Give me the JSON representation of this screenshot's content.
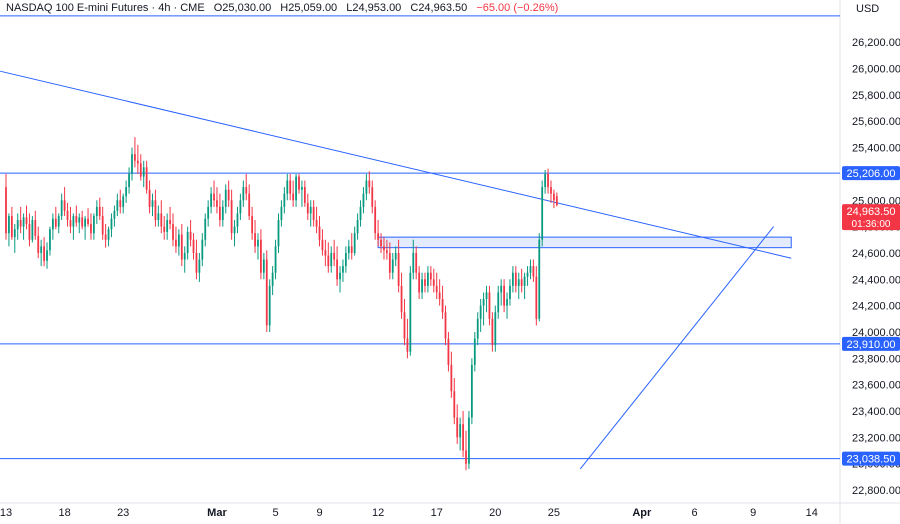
{
  "header": {
    "symbol": "NASDAQ 100 E-mini Futures · 4h · CME",
    "open": "O25,030.00",
    "high": "H25,059.00",
    "low": "L24,953.00",
    "close": "C24,963.50",
    "change": "−65.00 (−0.26%)",
    "change_color": "#f23645"
  },
  "currency": "USD",
  "colors": {
    "up": "#089981",
    "down": "#f23645",
    "line": "#2962ff",
    "zone_fill": "#e3ebfd",
    "zone_border": "#2962ff",
    "price_badge": "#f23645",
    "level_badge": "#2962ff"
  },
  "chart_data": {
    "type": "candlestick",
    "interval": "4h",
    "ylim": [
      22700,
      26350
    ],
    "y_ticks": [
      "26,200.00",
      "26,000.00",
      "25,800.00",
      "25,600.00",
      "25,400.00",
      "25,200.00",
      "25,000.00",
      "24,800.00",
      "24,600.00",
      "24,400.00",
      "24,200.00",
      "24,000.00",
      "23,800.00",
      "23,600.00",
      "23,400.00",
      "23,200.00",
      "23,000.00",
      "22,800.00"
    ],
    "x_ticks": [
      {
        "label": "13",
        "i": 0
      },
      {
        "label": "18",
        "i": 20
      },
      {
        "label": "23",
        "i": 40
      },
      {
        "label": "Mar",
        "i": 72
      },
      {
        "label": "5",
        "i": 92
      },
      {
        "label": "9",
        "i": 107
      },
      {
        "label": "12",
        "i": 127
      },
      {
        "label": "17",
        "i": 147
      },
      {
        "label": "20",
        "i": 167
      },
      {
        "label": "25",
        "i": 187
      },
      {
        "label": "Apr",
        "i": 217
      },
      {
        "label": "6",
        "i": 235
      },
      {
        "label": "9",
        "i": 255
      },
      {
        "label": "14",
        "i": 275
      }
    ],
    "candles": [
      [
        25100,
        25200,
        24700,
        24750
      ],
      [
        24750,
        24900,
        24650,
        24880
      ],
      [
        24880,
        24950,
        24700,
        24720
      ],
      [
        24720,
        24820,
        24600,
        24780
      ],
      [
        24780,
        24900,
        24700,
        24850
      ],
      [
        24850,
        24950,
        24750,
        24800
      ],
      [
        24800,
        24900,
        24700,
        24870
      ],
      [
        24870,
        24960,
        24780,
        24820
      ],
      [
        24820,
        24900,
        24650,
        24700
      ],
      [
        24700,
        24880,
        24680,
        24850
      ],
      [
        24850,
        24920,
        24700,
        24730
      ],
      [
        24730,
        24800,
        24560,
        24600
      ],
      [
        24600,
        24700,
        24500,
        24650
      ],
      [
        24650,
        24720,
        24500,
        24540
      ],
      [
        24540,
        24680,
        24480,
        24620
      ],
      [
        24620,
        24800,
        24580,
        24780
      ],
      [
        24780,
        24900,
        24700,
        24860
      ],
      [
        24860,
        24950,
        24780,
        24800
      ],
      [
        24800,
        24900,
        24750,
        24880
      ],
      [
        24880,
        25050,
        24850,
        25000
      ],
      [
        25000,
        25100,
        24880,
        24920
      ],
      [
        24920,
        24980,
        24800,
        24850
      ],
      [
        24850,
        24950,
        24750,
        24800
      ],
      [
        24800,
        24900,
        24700,
        24880
      ],
      [
        24880,
        24960,
        24800,
        24830
      ],
      [
        24830,
        24900,
        24750,
        24870
      ],
      [
        24870,
        24920,
        24780,
        24800
      ],
      [
        24800,
        24880,
        24700,
        24860
      ],
      [
        24860,
        24940,
        24800,
        24820
      ],
      [
        24820,
        24900,
        24700,
        24750
      ],
      [
        24750,
        24900,
        24700,
        24880
      ],
      [
        24880,
        25000,
        24820,
        24950
      ],
      [
        24950,
        25020,
        24850,
        24880
      ],
      [
        24880,
        24950,
        24700,
        24740
      ],
      [
        24740,
        24820,
        24640,
        24700
      ],
      [
        24700,
        24800,
        24650,
        24780
      ],
      [
        24780,
        24900,
        24720,
        24860
      ],
      [
        24860,
        24960,
        24800,
        24920
      ],
      [
        24920,
        25050,
        24880,
        25000
      ],
      [
        25000,
        25080,
        24900,
        24950
      ],
      [
        24950,
        25050,
        24900,
        25030
      ],
      [
        25030,
        25150,
        24980,
        25100
      ],
      [
        25100,
        25250,
        25050,
        25200
      ],
      [
        25200,
        25400,
        25150,
        25350
      ],
      [
        25350,
        25480,
        25250,
        25300
      ],
      [
        25300,
        25420,
        25200,
        25280
      ],
      [
        25280,
        25350,
        25150,
        25180
      ],
      [
        25180,
        25300,
        25100,
        25250
      ],
      [
        25250,
        25300,
        25050,
        25080
      ],
      [
        25080,
        25150,
        24900,
        24950
      ],
      [
        24950,
        25050,
        24880,
        25000
      ],
      [
        25000,
        25080,
        24800,
        24850
      ],
      [
        24850,
        24960,
        24800,
        24900
      ],
      [
        24900,
        25000,
        24750,
        24800
      ],
      [
        24800,
        24880,
        24700,
        24760
      ],
      [
        24760,
        24900,
        24700,
        24850
      ],
      [
        24850,
        24950,
        24780,
        24820
      ],
      [
        24820,
        24900,
        24650,
        24700
      ],
      [
        24700,
        24800,
        24600,
        24650
      ],
      [
        24650,
        24780,
        24580,
        24740
      ],
      [
        24740,
        24820,
        24500,
        24550
      ],
      [
        24550,
        24650,
        24450,
        24600
      ],
      [
        24600,
        24800,
        24550,
        24760
      ],
      [
        24760,
        24850,
        24650,
        24700
      ],
      [
        24700,
        24750,
        24550,
        24600
      ],
      [
        24600,
        24700,
        24400,
        24450
      ],
      [
        24450,
        24600,
        24380,
        24550
      ],
      [
        24550,
        24750,
        24500,
        24700
      ],
      [
        24700,
        24900,
        24650,
        24860
      ],
      [
        24860,
        25000,
        24800,
        24950
      ],
      [
        24950,
        25100,
        24900,
        25050
      ],
      [
        25050,
        25150,
        24950,
        25000
      ],
      [
        25000,
        25100,
        24900,
        24950
      ],
      [
        24950,
        25050,
        24800,
        24850
      ],
      [
        24850,
        25000,
        24800,
        24950
      ],
      [
        24950,
        25120,
        24900,
        25080
      ],
      [
        25080,
        25150,
        24950,
        25000
      ],
      [
        25000,
        25080,
        24700,
        24750
      ],
      [
        24750,
        24850,
        24650,
        24800
      ],
      [
        24800,
        24950,
        24750,
        24900
      ],
      [
        24900,
        25050,
        24850,
        25000
      ],
      [
        25000,
        25150,
        24950,
        25100
      ],
      [
        25100,
        25200,
        25000,
        25050
      ],
      [
        25050,
        25120,
        24850,
        24880
      ],
      [
        24880,
        24950,
        24700,
        24750
      ],
      [
        24750,
        24850,
        24600,
        24650
      ],
      [
        24650,
        24750,
        24550,
        24700
      ],
      [
        24700,
        24780,
        24400,
        24450
      ],
      [
        24450,
        24600,
        24400,
        24550
      ],
      [
        24550,
        24620,
        24000,
        24050
      ],
      [
        24050,
        24400,
        24000,
        24350
      ],
      [
        24350,
        24500,
        24280,
        24450
      ],
      [
        24450,
        24700,
        24400,
        24650
      ],
      [
        24650,
        24900,
        24600,
        24850
      ],
      [
        24850,
        25000,
        24800,
        24950
      ],
      [
        24950,
        25100,
        24900,
        25050
      ],
      [
        25050,
        25200,
        25000,
        25150
      ],
      [
        25150,
        25200,
        25000,
        25050
      ],
      [
        25050,
        25150,
        24950,
        25000
      ],
      [
        25000,
        25200,
        24950,
        25180
      ],
      [
        25180,
        25200,
        25050,
        25080
      ],
      [
        25080,
        25150,
        24950,
        25100
      ],
      [
        25100,
        25150,
        24950,
        24980
      ],
      [
        24980,
        25050,
        24850,
        24900
      ],
      [
        24900,
        25000,
        24800,
        24950
      ],
      [
        24950,
        25000,
        24800,
        24850
      ],
      [
        24850,
        24950,
        24750,
        24800
      ],
      [
        24800,
        24880,
        24650,
        24700
      ],
      [
        24700,
        24780,
        24580,
        24620
      ],
      [
        24620,
        24700,
        24500,
        24580
      ],
      [
        24580,
        24680,
        24450,
        24500
      ],
      [
        24500,
        24650,
        24450,
        24600
      ],
      [
        24600,
        24700,
        24500,
        24550
      ],
      [
        24550,
        24650,
        24350,
        24400
      ],
      [
        24400,
        24500,
        24300,
        24450
      ],
      [
        24450,
        24550,
        24380,
        24500
      ],
      [
        24500,
        24650,
        24450,
        24600
      ],
      [
        24600,
        24700,
        24550,
        24650
      ],
      [
        24650,
        24750,
        24550,
        24600
      ],
      [
        24600,
        24800,
        24580,
        24750
      ],
      [
        24750,
        24900,
        24700,
        24850
      ],
      [
        24850,
        25000,
        24800,
        24950
      ],
      [
        24950,
        25100,
        24900,
        25050
      ],
      [
        25050,
        25200,
        25000,
        25150
      ],
      [
        25150,
        25220,
        25050,
        25100
      ],
      [
        25100,
        25150,
        24900,
        24950
      ],
      [
        24950,
        25000,
        24700,
        24750
      ],
      [
        24750,
        24850,
        24650,
        24700
      ],
      [
        24700,
        24750,
        24600,
        24650
      ],
      [
        24650,
        24720,
        24550,
        24620
      ],
      [
        24620,
        24700,
        24550,
        24600
      ],
      [
        24600,
        24680,
        24400,
        24450
      ],
      [
        24450,
        24600,
        24400,
        24550
      ],
      [
        24550,
        24650,
        24500,
        24600
      ],
      [
        24600,
        24700,
        24300,
        24350
      ],
      [
        24350,
        24450,
        24100,
        24150
      ],
      [
        24150,
        24250,
        23900,
        23950
      ],
      [
        23950,
        24100,
        23800,
        23850
      ],
      [
        23850,
        24500,
        23820,
        24450
      ],
      [
        24450,
        24700,
        24400,
        24600
      ],
      [
        24600,
        24650,
        24400,
        24450
      ],
      [
        24450,
        24500,
        24250,
        24300
      ],
      [
        24300,
        24450,
        24250,
        24400
      ],
      [
        24400,
        24450,
        24300,
        24350
      ],
      [
        24350,
        24500,
        24300,
        24450
      ],
      [
        24450,
        24500,
        24350,
        24400
      ],
      [
        24400,
        24480,
        24300,
        24350
      ],
      [
        24350,
        24450,
        24250,
        24300
      ],
      [
        24300,
        24400,
        24200,
        24250
      ],
      [
        24250,
        24350,
        24100,
        24150
      ],
      [
        24150,
        24200,
        23900,
        23950
      ],
      [
        23950,
        24000,
        23700,
        23750
      ],
      [
        23750,
        23850,
        23500,
        23550
      ],
      [
        23550,
        23650,
        23300,
        23350
      ],
      [
        23350,
        23450,
        23150,
        23200
      ],
      [
        23200,
        23350,
        23100,
        23300
      ],
      [
        23300,
        23400,
        23050,
        23100
      ],
      [
        23100,
        23250,
        22950,
        23000
      ],
      [
        23000,
        23400,
        22960,
        23350
      ],
      [
        23350,
        23800,
        23300,
        23750
      ],
      [
        23750,
        24000,
        23700,
        23950
      ],
      [
        23950,
        24150,
        23900,
        24100
      ],
      [
        24100,
        24250,
        24000,
        24200
      ],
      [
        24200,
        24300,
        24050,
        24250
      ],
      [
        24250,
        24350,
        24150,
        24300
      ],
      [
        24300,
        24350,
        24050,
        24100
      ],
      [
        24100,
        24150,
        23850,
        23900
      ],
      [
        23900,
        24200,
        23850,
        24150
      ],
      [
        24150,
        24350,
        24100,
        24300
      ],
      [
        24300,
        24400,
        24200,
        24350
      ],
      [
        24350,
        24400,
        24150,
        24200
      ],
      [
        24200,
        24300,
        24100,
        24250
      ],
      [
        24250,
        24400,
        24200,
        24350
      ],
      [
        24350,
        24500,
        24300,
        24450
      ],
      [
        24450,
        24500,
        24300,
        24350
      ],
      [
        24350,
        24450,
        24250,
        24400
      ],
      [
        24400,
        24480,
        24300,
        24350
      ],
      [
        24350,
        24450,
        24250,
        24420
      ],
      [
        24420,
        24500,
        24350,
        24450
      ],
      [
        24450,
        24550,
        24400,
        24500
      ],
      [
        24500,
        24550,
        24380,
        24420
      ],
      [
        24420,
        24500,
        24050,
        24100
      ],
      [
        24100,
        24750,
        24080,
        24700
      ],
      [
        24700,
        25150,
        24650,
        25100
      ],
      [
        25100,
        25230,
        25050,
        25200
      ],
      [
        25200,
        25240,
        25050,
        25100
      ],
      [
        25100,
        25150,
        24980,
        25050
      ],
      [
        25050,
        25080,
        24940,
        25000
      ],
      [
        25030,
        25059,
        24953,
        24963.5
      ]
    ],
    "levels": [
      {
        "value": 25206.0,
        "label": "25,206.00"
      },
      {
        "value": 23910.0,
        "label": "23,910.00"
      },
      {
        "value": 23038.5,
        "label": "23,038.50"
      }
    ],
    "top_level": 26400,
    "last_price": {
      "label": "24,963.50",
      "timer": "01:36:00"
    },
    "zone": {
      "low": 24640,
      "high": 24720,
      "from_i": 127,
      "to_i": 268
    },
    "trendlines": [
      {
        "from_i": -2,
        "from_v": 25980,
        "to_i": 268,
        "to_v": 24560
      },
      {
        "from_i": 196,
        "from_v": 22960,
        "to_i": 262,
        "to_v": 24800
      }
    ]
  }
}
